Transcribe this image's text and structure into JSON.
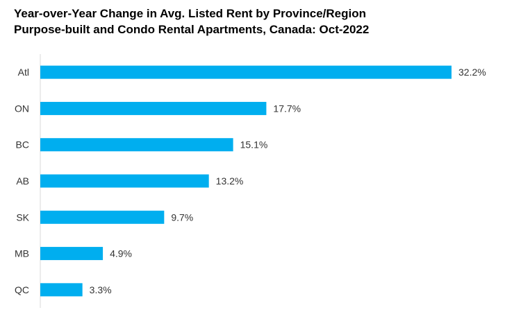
{
  "chart_title": {
    "line1": "Year-over-Year Change in Avg. Listed Rent by Province/Region",
    "line2": "Purpose-built and Condo Rental Apartments, Canada: Oct-2022"
  },
  "colors": {
    "bar": "#00AEEF",
    "axis": "#D9D9D9",
    "text": "#333333"
  },
  "chart_data": {
    "type": "bar",
    "orientation": "horizontal",
    "title": "Year-over-Year Change in Avg. Listed Rent by Province/Region",
    "subtitle": "Purpose-built and Condo Rental Apartments, Canada: Oct-2022",
    "categories": [
      "Atl",
      "ON",
      "BC",
      "AB",
      "SK",
      "MB",
      "QC"
    ],
    "values": [
      32.2,
      17.7,
      15.1,
      13.2,
      9.7,
      4.9,
      3.3
    ],
    "value_labels": [
      "32.2%",
      "17.7%",
      "15.1%",
      "13.2%",
      "9.7%",
      "4.9%",
      "3.3%"
    ],
    "unit": "%",
    "xlim": [
      0,
      32.2
    ],
    "xlabel": "",
    "ylabel": "",
    "grid": false,
    "legend": "none"
  }
}
